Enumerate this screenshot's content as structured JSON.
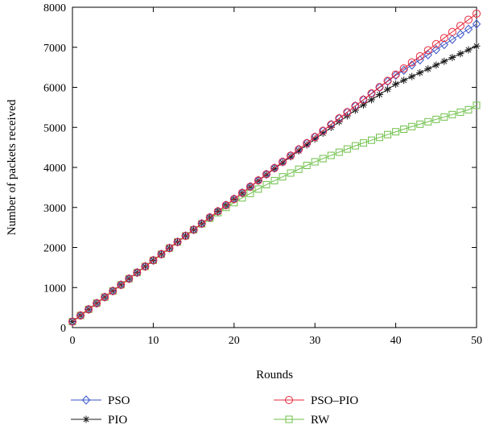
{
  "chart_data": {
    "type": "line",
    "title": "",
    "xlabel": "Rounds",
    "ylabel": "Number of packets received",
    "xlim": [
      0,
      50
    ],
    "ylim": [
      0,
      8000
    ],
    "xticks": [
      0,
      10,
      20,
      30,
      40,
      50
    ],
    "yticks": [
      0,
      1000,
      2000,
      3000,
      4000,
      5000,
      6000,
      7000,
      8000
    ],
    "grid": false,
    "legend_position": "bottom",
    "x": [
      0,
      1,
      2,
      3,
      4,
      5,
      6,
      7,
      8,
      9,
      10,
      11,
      12,
      13,
      14,
      15,
      16,
      17,
      18,
      19,
      20,
      21,
      22,
      23,
      24,
      25,
      26,
      27,
      28,
      29,
      30,
      31,
      32,
      33,
      34,
      35,
      36,
      37,
      38,
      39,
      40,
      41,
      42,
      43,
      44,
      45,
      46,
      47,
      48,
      49,
      50
    ],
    "series": [
      {
        "name": "PSO",
        "color": "#3a55c8",
        "marker": "diamond",
        "values": [
          150,
          303,
          456,
          609,
          762,
          915,
          1068,
          1221,
          1374,
          1527,
          1680,
          1833,
          1986,
          2139,
          2292,
          2445,
          2598,
          2751,
          2904,
          3057,
          3210,
          3365,
          3520,
          3675,
          3830,
          3985,
          4140,
          4295,
          4450,
          4605,
          4760,
          4915,
          5070,
          5225,
          5380,
          5535,
          5690,
          5843,
          5996,
          6149,
          6300,
          6428,
          6556,
          6684,
          6812,
          6940,
          7068,
          7196,
          7324,
          7452,
          7580
        ]
      },
      {
        "name": "PSO–PIO",
        "color": "#e8283a",
        "marker": "circle",
        "values": [
          150,
          303,
          456,
          609,
          762,
          915,
          1068,
          1221,
          1374,
          1527,
          1680,
          1833,
          1986,
          2139,
          2292,
          2445,
          2598,
          2751,
          2904,
          3057,
          3210,
          3365,
          3520,
          3675,
          3830,
          3985,
          4140,
          4295,
          4450,
          4605,
          4760,
          4915,
          5070,
          5225,
          5380,
          5535,
          5690,
          5848,
          6006,
          6164,
          6320,
          6472,
          6624,
          6776,
          6928,
          7080,
          7232,
          7384,
          7536,
          7688,
          7840
        ]
      },
      {
        "name": "PIO",
        "color": "#1a1a1a",
        "marker": "star",
        "values": [
          150,
          303,
          456,
          609,
          762,
          915,
          1068,
          1221,
          1374,
          1527,
          1680,
          1833,
          1986,
          2139,
          2292,
          2445,
          2598,
          2751,
          2904,
          3057,
          3210,
          3362,
          3514,
          3666,
          3818,
          3970,
          4118,
          4266,
          4414,
          4562,
          4710,
          4854,
          4998,
          5142,
          5286,
          5430,
          5560,
          5690,
          5820,
          5950,
          6080,
          6175,
          6270,
          6365,
          6460,
          6555,
          6650,
          6745,
          6840,
          6935,
          7030
        ]
      },
      {
        "name": "RW",
        "color": "#6fc04a",
        "marker": "square",
        "values": [
          150,
          303,
          456,
          609,
          762,
          915,
          1068,
          1221,
          1374,
          1527,
          1680,
          1833,
          1986,
          2139,
          2292,
          2445,
          2590,
          2730,
          2870,
          3000,
          3120,
          3240,
          3350,
          3460,
          3570,
          3670,
          3765,
          3860,
          3955,
          4050,
          4140,
          4220,
          4300,
          4380,
          4460,
          4540,
          4610,
          4680,
          4750,
          4820,
          4890,
          4955,
          5020,
          5080,
          5140,
          5200,
          5260,
          5320,
          5380,
          5440,
          5550
        ]
      }
    ]
  }
}
